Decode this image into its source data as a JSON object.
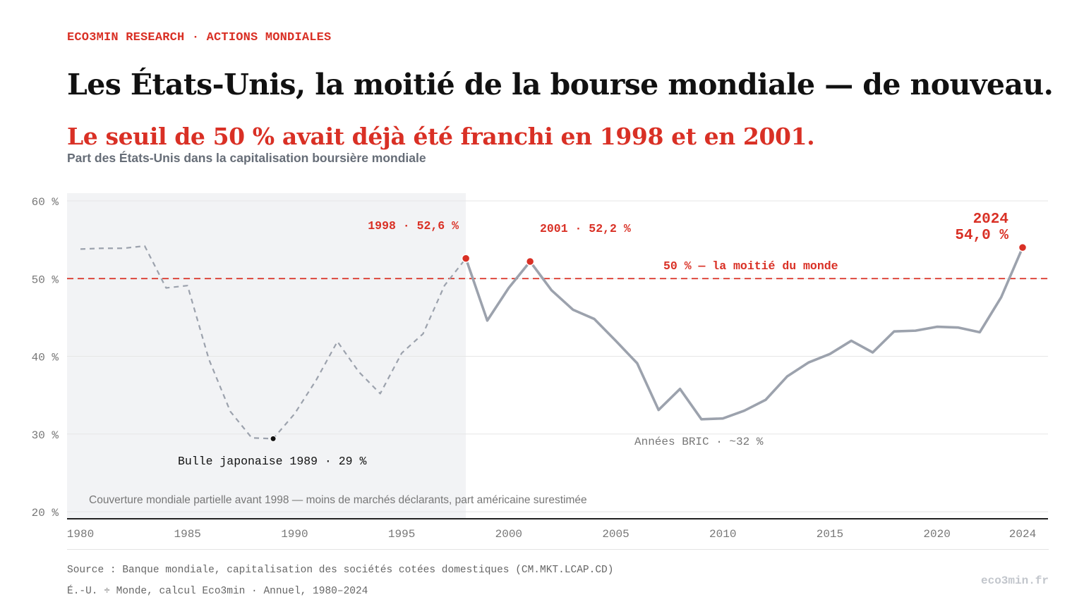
{
  "header": {
    "kicker": "ECO3MIN RESEARCH · ACTIONS MONDIALES",
    "title": "Les États-Unis, la moitié de la bourse mondiale — de nouveau.",
    "subtitle": "Le seuil de 50 % avait déjà été franchi en 1998 et en 2001.",
    "dek": "Part des États-Unis dans la capitalisation boursière mondiale"
  },
  "colors": {
    "accent": "#d93025",
    "line": "#9ca2ad",
    "shade": "#f2f3f5",
    "grid": "#e6e6e6",
    "axis": "#222222",
    "tick": "#777777"
  },
  "chart_data": {
    "type": "line",
    "x": [
      1980,
      1981,
      1982,
      1983,
      1984,
      1985,
      1986,
      1987,
      1988,
      1989,
      1990,
      1991,
      1992,
      1993,
      1994,
      1995,
      1996,
      1997,
      1998,
      1999,
      2000,
      2001,
      2002,
      2003,
      2004,
      2005,
      2006,
      2007,
      2008,
      2009,
      2010,
      2011,
      2012,
      2013,
      2014,
      2015,
      2016,
      2017,
      2018,
      2019,
      2020,
      2021,
      2022,
      2023,
      2024
    ],
    "series": [
      {
        "values": [
          53.8,
          53.9,
          53.9,
          54.2,
          48.8,
          49.1,
          39.6,
          32.9,
          29.5,
          29.4,
          32.6,
          36.9,
          41.9,
          38.0,
          35.2,
          40.4,
          42.9,
          49.1,
          52.6,
          44.6,
          48.8,
          52.2,
          48.5,
          46.0,
          44.8,
          42.0,
          39.1,
          33.1,
          35.8,
          31.9,
          32.0,
          33.0,
          34.4,
          37.4,
          39.2,
          40.3,
          42.0,
          40.5,
          43.2,
          43.3,
          43.8,
          43.7,
          43.1,
          47.6,
          54.0
        ],
        "dashed_until": 1998
      }
    ],
    "ylim": [
      20,
      60
    ],
    "xlim": [
      1980,
      2024
    ],
    "y_ticks": [
      20,
      30,
      40,
      50,
      60
    ],
    "y_tick_labels": [
      "20 %",
      "30 %",
      "40 %",
      "50 %",
      "60 %"
    ],
    "x_ticks": [
      1980,
      1985,
      1990,
      1995,
      2000,
      2005,
      2010,
      2015,
      2020,
      2024
    ],
    "grid": true,
    "shaded_period": {
      "from": 1980,
      "to": 1998,
      "note": "Couverture mondiale partielle avant 1998 — moins de marchés déclarants, part américaine surestimée"
    },
    "reference_line": {
      "value": 50,
      "label": "50 % — la moitié du monde"
    },
    "highlights": [
      {
        "x": 1998,
        "y": 52.6,
        "label": "1998 · 52,6 %",
        "color": "accent"
      },
      {
        "x": 2001,
        "y": 52.2,
        "label": "2001 · 52,2 %",
        "color": "accent"
      },
      {
        "x": 2024,
        "y": 54.0,
        "label": "2024",
        "label2": "54,0 %",
        "color": "accent"
      },
      {
        "x": 1989,
        "y": 29.4,
        "label": "Bulle japonaise 1989 · 29 %",
        "color": "dark"
      }
    ],
    "annotations": [
      {
        "x": 2009,
        "y": 31.9,
        "text": "Années BRIC · ~32 %"
      }
    ]
  },
  "footer": {
    "source": "Source : Banque mondiale, capitalisation des sociétés cotées domestiques (CM.MKT.LCAP.CD)",
    "method": "É.-U. ÷ Monde, calcul Eco3min · Annuel, 1980–2024",
    "brand": "eco3min.fr"
  }
}
